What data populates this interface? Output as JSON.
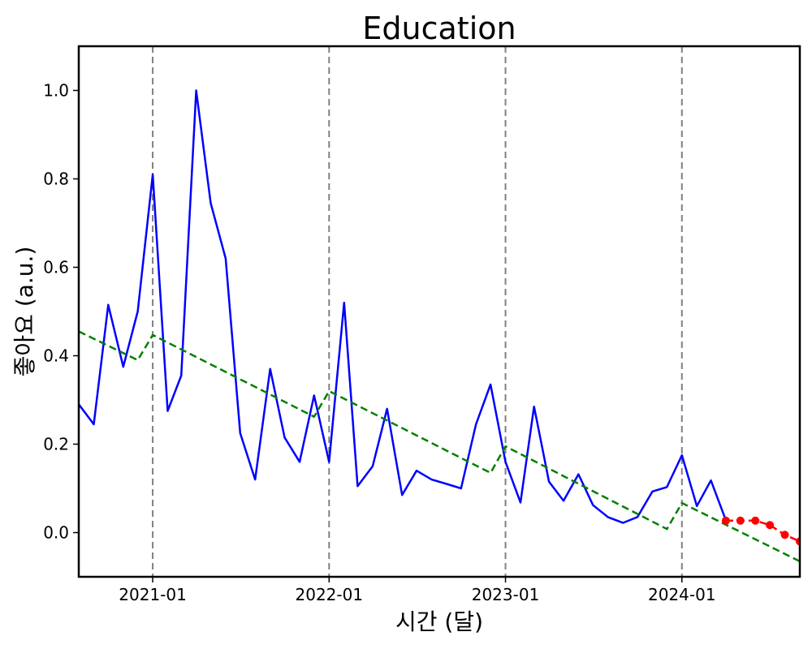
{
  "chart_data": {
    "type": "line",
    "title": "Education",
    "xlabel": "시간 (달)",
    "ylabel": "좋아요 (a.u.)",
    "xlim": [
      "2020-08-01",
      "2024-09-01"
    ],
    "ylim": [
      -0.1,
      1.1
    ],
    "xticks": [
      {
        "value": "2021-01-01",
        "label": "2021-01"
      },
      {
        "value": "2022-01-01",
        "label": "2022-01"
      },
      {
        "value": "2023-01-01",
        "label": "2023-01"
      },
      {
        "value": "2024-01-01",
        "label": "2024-01"
      }
    ],
    "yticks": [
      {
        "value": 0.0,
        "label": "0.0"
      },
      {
        "value": 0.2,
        "label": "0.2"
      },
      {
        "value": 0.4,
        "label": "0.4"
      },
      {
        "value": 0.6,
        "label": "0.6"
      },
      {
        "value": 0.8,
        "label": "0.8"
      },
      {
        "value": 1.0,
        "label": "1.0"
      }
    ],
    "vlines": [
      "2021-01-01",
      "2022-01-01",
      "2023-01-01",
      "2024-01-01"
    ],
    "grid": false,
    "colors": {
      "observed": "#0000ff",
      "trend": "#008000",
      "forecast": "#ff0000",
      "vline": "#808080"
    },
    "series": [
      {
        "style": "solid",
        "color": "#0000ff",
        "points": [
          [
            "2020-08-01",
            0.29
          ],
          [
            "2020-09-01",
            0.245
          ],
          [
            "2020-10-01",
            0.515
          ],
          [
            "2020-11-01",
            0.375
          ],
          [
            "2020-12-01",
            0.5
          ],
          [
            "2021-01-01",
            0.81
          ],
          [
            "2021-02-01",
            0.275
          ],
          [
            "2021-03-01",
            0.355
          ],
          [
            "2021-04-01",
            1.0
          ],
          [
            "2021-05-01",
            0.745
          ],
          [
            "2021-06-01",
            0.62
          ],
          [
            "2021-07-01",
            0.225
          ],
          [
            "2021-08-01",
            0.12
          ],
          [
            "2021-09-01",
            0.37
          ],
          [
            "2021-10-01",
            0.215
          ],
          [
            "2021-11-01",
            0.16
          ],
          [
            "2021-12-01",
            0.31
          ],
          [
            "2022-01-01",
            0.16
          ],
          [
            "2022-02-01",
            0.52
          ],
          [
            "2022-03-01",
            0.105
          ],
          [
            "2022-04-01",
            0.15
          ],
          [
            "2022-05-01",
            0.28
          ],
          [
            "2022-06-01",
            0.085
          ],
          [
            "2022-07-01",
            0.14
          ],
          [
            "2022-08-01",
            0.12
          ],
          [
            "2022-09-01",
            0.11
          ],
          [
            "2022-10-01",
            0.1
          ],
          [
            "2022-11-01",
            0.245
          ],
          [
            "2022-12-01",
            0.335
          ],
          [
            "2023-01-01",
            0.16
          ],
          [
            "2023-02-01",
            0.068
          ],
          [
            "2023-03-01",
            0.285
          ],
          [
            "2023-04-01",
            0.115
          ],
          [
            "2023-05-01",
            0.072
          ],
          [
            "2023-06-01",
            0.132
          ],
          [
            "2023-07-01",
            0.062
          ],
          [
            "2023-08-01",
            0.035
          ],
          [
            "2023-09-01",
            0.022
          ],
          [
            "2023-10-01",
            0.035
          ],
          [
            "2023-11-01",
            0.093
          ],
          [
            "2023-12-01",
            0.103
          ],
          [
            "2024-01-01",
            0.175
          ],
          [
            "2024-02-01",
            0.06
          ],
          [
            "2024-03-01",
            0.118
          ],
          [
            "2024-04-01",
            0.028
          ]
        ]
      },
      {
        "style": "dashed",
        "color": "#008000",
        "points": [
          [
            "2020-08-01",
            0.455
          ],
          [
            "2020-12-01",
            0.39
          ],
          [
            "2021-01-01",
            0.447
          ],
          [
            "2021-12-01",
            0.262
          ],
          [
            "2022-01-01",
            0.32
          ],
          [
            "2022-12-01",
            0.135
          ],
          [
            "2023-01-01",
            0.195
          ],
          [
            "2023-12-01",
            0.008
          ],
          [
            "2024-01-01",
            0.067
          ],
          [
            "2024-09-01",
            -0.065
          ]
        ]
      },
      {
        "style": "dashed-markers",
        "color": "#ff0000",
        "points": [
          [
            "2024-04-01",
            0.027
          ],
          [
            "2024-05-01",
            0.027
          ],
          [
            "2024-06-01",
            0.027
          ],
          [
            "2024-07-01",
            0.017
          ],
          [
            "2024-08-01",
            -0.005
          ],
          [
            "2024-09-01",
            -0.02
          ]
        ]
      }
    ]
  }
}
